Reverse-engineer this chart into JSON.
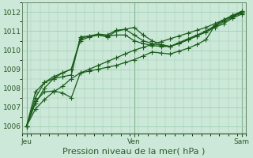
{
  "bg_color": "#cce8d8",
  "plot_bg_color": "#cce8d8",
  "grid_color": "#99ccb0",
  "line_color": "#1a5c1a",
  "xlabel": "Pression niveau de la mer( hPa )",
  "xlabel_fontsize": 8,
  "ytick_fontsize": 6.5,
  "xtick_fontsize": 6.5,
  "yticks": [
    1006,
    1007,
    1008,
    1009,
    1010,
    1011,
    1012
  ],
  "ylim": [
    1005.6,
    1012.5
  ],
  "xlim": [
    0,
    50
  ],
  "xtick_labels": [
    "Jeu",
    "Ven",
    "Sam"
  ],
  "xtick_positions": [
    1,
    25,
    49
  ],
  "vline_positions": [
    1,
    25,
    49
  ],
  "series": [
    [
      1,
      1006.0,
      3,
      1006.9,
      5,
      1007.4,
      7,
      1007.8,
      9,
      1008.1,
      11,
      1008.5,
      13,
      1008.8,
      15,
      1009.0,
      17,
      1009.2,
      19,
      1009.4,
      21,
      1009.6,
      23,
      1009.8,
      25,
      1010.0,
      27,
      1010.15,
      29,
      1010.3,
      31,
      1010.45,
      33,
      1010.6,
      35,
      1010.75,
      37,
      1010.9,
      39,
      1011.05,
      41,
      1011.2,
      43,
      1011.4,
      45,
      1011.6,
      47,
      1011.8,
      49,
      1012.0
    ],
    [
      1,
      1006.0,
      3,
      1007.2,
      5,
      1008.0,
      7,
      1008.5,
      9,
      1008.8,
      11,
      1009.0,
      13,
      1010.5,
      15,
      1010.7,
      17,
      1010.8,
      19,
      1010.7,
      21,
      1011.0,
      23,
      1011.1,
      25,
      1011.2,
      27,
      1010.8,
      29,
      1010.5,
      31,
      1010.3,
      33,
      1010.2,
      35,
      1010.35,
      37,
      1010.55,
      39,
      1010.75,
      41,
      1010.95,
      43,
      1011.2,
      45,
      1011.4,
      47,
      1011.7,
      49,
      1011.9
    ],
    [
      1,
      1006.0,
      3,
      1007.5,
      5,
      1008.3,
      7,
      1008.6,
      9,
      1008.8,
      11,
      1009.0,
      13,
      1010.6,
      15,
      1010.75,
      17,
      1010.85,
      19,
      1010.8,
      21,
      1011.05,
      23,
      1011.1,
      25,
      1010.8,
      27,
      1010.5,
      29,
      1010.35,
      31,
      1010.25,
      33,
      1010.2,
      35,
      1010.4,
      37,
      1010.6,
      39,
      1010.8,
      41,
      1011.0,
      43,
      1011.25,
      45,
      1011.5,
      47,
      1011.75,
      49,
      1012.0
    ],
    [
      1,
      1006.0,
      3,
      1007.8,
      5,
      1008.3,
      7,
      1008.5,
      9,
      1008.6,
      11,
      1008.7,
      13,
      1010.7,
      15,
      1010.75,
      17,
      1010.8,
      19,
      1010.75,
      21,
      1010.8,
      23,
      1010.8,
      25,
      1010.5,
      27,
      1010.35,
      29,
      1010.25,
      31,
      1010.2,
      33,
      1010.2,
      35,
      1010.35,
      37,
      1010.55,
      39,
      1010.75,
      41,
      1011.0,
      43,
      1011.3,
      45,
      1011.6,
      47,
      1011.85,
      49,
      1012.05
    ],
    [
      1,
      1006.0,
      3,
      1007.3,
      5,
      1007.8,
      7,
      1007.85,
      9,
      1007.75,
      11,
      1007.5,
      13,
      1008.8,
      15,
      1008.9,
      17,
      1009.0,
      19,
      1009.1,
      21,
      1009.2,
      23,
      1009.35,
      25,
      1009.5,
      27,
      1009.7,
      29,
      1009.9,
      31,
      1009.85,
      33,
      1009.8,
      35,
      1009.95,
      37,
      1010.1,
      39,
      1010.3,
      41,
      1010.55,
      43,
      1011.3,
      45,
      1011.6,
      47,
      1011.8,
      49,
      1011.95
    ]
  ],
  "lw": 0.9,
  "marker_size": 2.0
}
